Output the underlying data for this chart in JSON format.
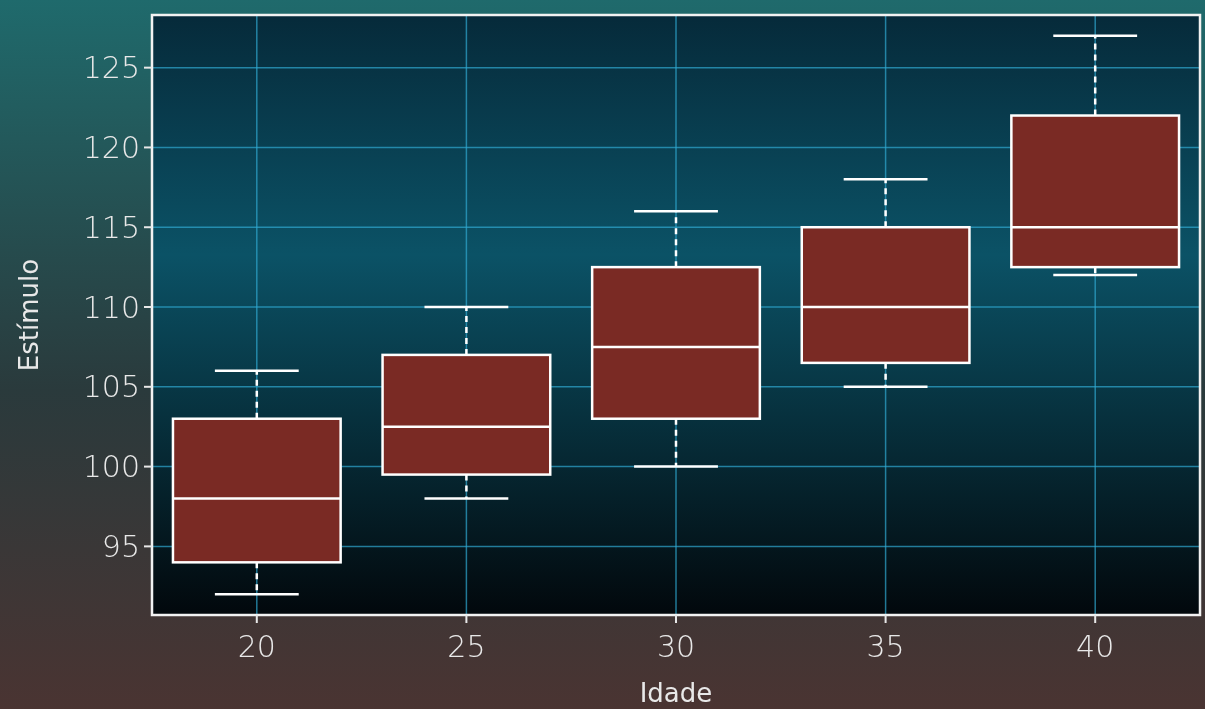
{
  "chart_data": {
    "type": "box",
    "xlabel": "Idade",
    "ylabel": "Estímulo",
    "categories": [
      "20",
      "25",
      "30",
      "35",
      "40"
    ],
    "boxes": [
      {
        "low": 92,
        "q1": 94,
        "median": 98,
        "q3": 103,
        "high": 106
      },
      {
        "low": 98,
        "q1": 99.5,
        "median": 102.5,
        "q3": 107,
        "high": 110
      },
      {
        "low": 100,
        "q1": 103,
        "median": 107.5,
        "q3": 112.5,
        "high": 116
      },
      {
        "low": 105,
        "q1": 106.5,
        "median": 110,
        "q3": 115,
        "high": 118
      },
      {
        "low": 112,
        "q1": 112.5,
        "median": 115,
        "q3": 122,
        "high": 127
      }
    ],
    "color": "#7a2a24",
    "ylim": [
      90.7,
      128.3
    ],
    "yticks": [
      95,
      100,
      105,
      110,
      115,
      120,
      125
    ],
    "grid": true,
    "line_style": "dashed"
  }
}
